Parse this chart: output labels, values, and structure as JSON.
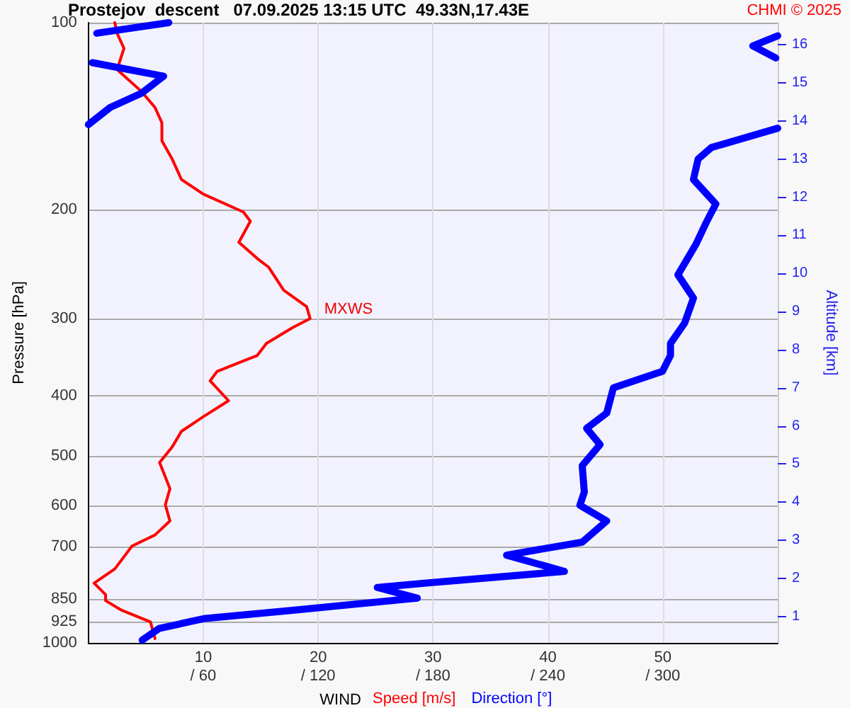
{
  "chart_data": {
    "type": "line",
    "orientation": "horizontal",
    "title": "Prostejov  descent   07.09.2025 13:15 UTC  49.33N,17.43E",
    "xlabel": "WIND",
    "ylabel": "Pressure [hPa]",
    "y2label": "Altitude [km]",
    "annotations": [
      "CHMI © 2025",
      {
        "text": "MXWS",
        "x": 19.3,
        "y": 300
      }
    ],
    "log": "y",
    "ylim": [
      1000,
      100
    ],
    "yticks": [
      100,
      200,
      300,
      400,
      500,
      600,
      700,
      850,
      925,
      1000
    ],
    "xlim": [
      0,
      60
    ],
    "xticks": [
      10,
      20,
      30,
      40,
      50
    ],
    "x2lim": [
      0,
      360
    ],
    "x2ticks": [
      {
        "value": 60,
        "label": "/ 60"
      },
      {
        "value": 120,
        "label": "/ 120"
      },
      {
        "value": 180,
        "label": "/ 180"
      },
      {
        "value": 240,
        "label": "/ 240"
      },
      {
        "value": 300,
        "label": "/ 300"
      }
    ],
    "y2lim": [
      0.31,
      16.58
    ],
    "y2ticks": [
      1,
      2,
      3,
      4,
      5,
      6,
      7,
      8,
      9,
      10,
      11,
      12,
      13,
      14,
      15,
      16
    ],
    "grid": true,
    "legend": "bottom",
    "marker": "none",
    "line_style": "solid",
    "series": [
      {
        "name": "Speed [m/s]",
        "color": "#ff0000",
        "x": [
          100,
          104,
          110,
          119,
          129,
          137,
          145,
          155,
          166,
          179,
          189,
          202,
          209,
          226,
          240,
          248,
          270,
          287,
          300,
          310,
          329,
          344,
          365,
          378,
          407,
          432,
          456,
          483,
          512,
          564,
          599,
          636,
          670,
          698,
          760,
          801,
          836,
          855,
          886,
          925,
          984
        ],
        "values": [
          2.3,
          2.5,
          3.1,
          2.5,
          4.6,
          5.8,
          6.4,
          6.4,
          7.3,
          8.1,
          10.0,
          13.5,
          14.1,
          13.1,
          14.7,
          15.7,
          17.0,
          19.0,
          19.3,
          17.8,
          15.5,
          14.7,
          11.2,
          10.6,
          12.2,
          10.0,
          8.1,
          7.3,
          6.2,
          7.1,
          6.7,
          7.1,
          5.8,
          3.8,
          2.3,
          0.5,
          1.5,
          1.5,
          2.9,
          5.4,
          5.8
        ]
      },
      {
        "name": "Direction [°]",
        "color": "#0000ff",
        "axis": "x2",
        "x": [
          100,
          104,
          104.5,
          105,
          109,
          114,
          115.5,
          116,
          122,
          130,
          137,
          146,
          147,
          148,
          159,
          166,
          179,
          196,
          209,
          228,
          255,
          278,
          305,
          329,
          344,
          365,
          388,
          426,
          451,
          479,
          518,
          571,
          600,
          636,
          688,
          722,
          767,
          801,
          814,
          847,
          886,
          914,
          948,
          990
        ],
        "values": [
          42,
          4.4,
          null,
          360,
          347,
          359,
          null,
          2.1,
          39.3,
          27.7,
          11.4,
          0,
          null,
          360,
          325.3,
          318.4,
          316,
          327.7,
          323,
          317.2,
          307.9,
          316,
          311.4,
          304,
          304,
          299.8,
          274.2,
          270.7,
          260.2,
          267.2,
          257.9,
          259,
          256.7,
          270.7,
          257.9,
          218.4,
          248.6,
          176.5,
          150.9,
          171.8,
          106.7,
          60.2,
          37,
          28.1
        ]
      }
    ]
  }
}
